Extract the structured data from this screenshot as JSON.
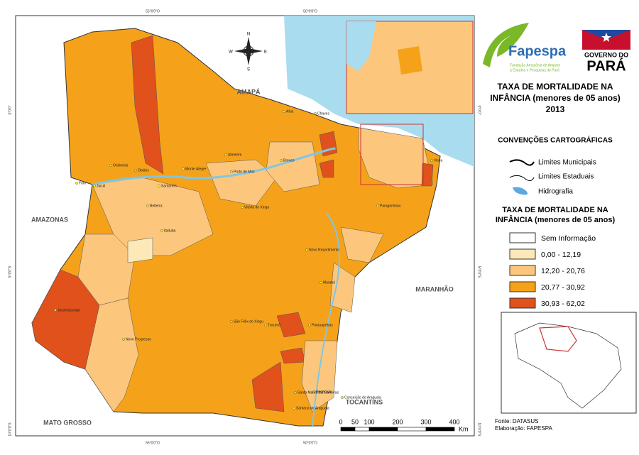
{
  "header": {
    "title": [
      "TAXA DE MORTALIDADE NA",
      "INFÂNCIA (menores de 05 anos)",
      "2013"
    ]
  },
  "logos": {
    "fapespa": "Fapespa",
    "fapespa_subtitle": [
      "Fundação Amazônia de Amparo",
      "a Estudos e Pesquisas do Pará"
    ],
    "governo": "GOVERNO DO",
    "para": "PARÁ"
  },
  "conventions": {
    "title": "CONVENÇÕES CARTOGRÁFICAS",
    "items": [
      "Limites Municipais",
      "Limites Estaduais",
      "Hidrografia"
    ]
  },
  "legend": {
    "title": [
      "TAXA DE MORTALIDADE NA",
      "INFÂNCIA (menores de 05 anos)"
    ],
    "classes": [
      {
        "label": "Sem Informação",
        "color": "#ffffff"
      },
      {
        "label": "0,00 - 12,19",
        "color": "#fde8b8"
      },
      {
        "label": "12,20 - 20,76",
        "color": "#fcc77c"
      },
      {
        "label": "20,77 - 30,92",
        "color": "#f5a21a"
      },
      {
        "label": "30,93 - 62,02",
        "color": "#e0511b"
      }
    ]
  },
  "map": {
    "neighbors": [
      "AMAPÁ",
      "AMAZONAS",
      "MARANHÃO",
      "TOCANTINS",
      "MATO GROSSO"
    ],
    "compass": [
      "N",
      "S",
      "E",
      "W"
    ],
    "coordinates": {
      "top": [
        "55°0'0\"O",
        "50°0'0\"O"
      ],
      "left": [
        "0°0'0\"",
        "5°0'0\"S",
        "10°0'0\"S"
      ]
    },
    "municipalities": [
      "Faro",
      "Juruti",
      "Oriximiná",
      "Óbidos",
      "Santarém",
      "Monte Alegre",
      "Almeirim",
      "Porto de Moz",
      "Belterra",
      "Itaituba",
      "Vitória do Xingu",
      "Jacareacanga",
      "Novo Progresso",
      "São Félix do Xingu",
      "Novo Repartimento",
      "Marabá",
      "Parauapebas",
      "Redenção",
      "Conceição do Araguaia",
      "Paragominas",
      "Breves",
      "Chaves",
      "Afuá",
      "Viseu",
      "Tucumã",
      "Santa Maria das Barreiras",
      "Santana do Araguaia"
    ]
  },
  "scale": {
    "ticks": [
      0,
      50,
      100,
      200,
      300,
      400
    ],
    "unit": "Km"
  },
  "footer": {
    "source": "Fonte: DATASUS",
    "author": "Elaboração: FAPESPA"
  }
}
